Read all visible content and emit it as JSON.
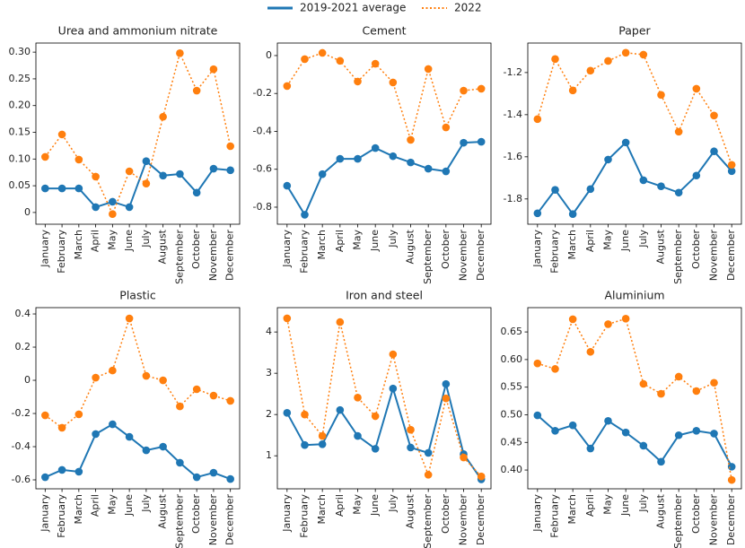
{
  "legend": [
    {
      "name": "2019-2021 average",
      "color": "#1f77b4",
      "dash": "solid"
    },
    {
      "name": "2022",
      "color": "#ff7f0e",
      "dash": "dotted"
    }
  ],
  "chart_data": [
    {
      "type": "line",
      "title": "Urea and ammonium nitrate",
      "categories": [
        "January",
        "February",
        "March",
        "April",
        "May",
        "June",
        "July",
        "August",
        "September",
        "October",
        "November",
        "December"
      ],
      "ylim": [
        -0.022,
        0.317
      ],
      "yticks": [
        0,
        0.05,
        {
          "value": 0.1,
          "label": "0.10"
        },
        0.15,
        {
          "value": 0.2,
          "label": "0.20"
        },
        0.25,
        {
          "value": 0.3,
          "label": "0.30"
        }
      ],
      "series": [
        {
          "values": [
            0.045,
            0.045,
            0.045,
            0.01,
            0.02,
            0.01,
            0.096,
            0.069,
            0.072,
            0.037,
            0.082,
            0.079
          ]
        },
        {
          "values": [
            0.104,
            0.146,
            0.099,
            0.067,
            -0.003,
            0.077,
            0.054,
            0.179,
            0.298,
            0.228,
            0.268,
            0.124
          ]
        }
      ]
    },
    {
      "type": "line",
      "title": "Cement",
      "categories": [
        "January",
        "February",
        "March",
        "April",
        "May",
        "June",
        "July",
        "August",
        "September",
        "October",
        "November",
        "December"
      ],
      "ylim": [
        -0.89,
        0.066
      ],
      "yticks": [
        0,
        -0.2,
        -0.4,
        -0.6,
        -0.8
      ],
      "series": [
        {
          "values": [
            -0.687,
            -0.84,
            -0.626,
            -0.545,
            -0.545,
            -0.488,
            -0.531,
            -0.564,
            -0.597,
            -0.611,
            -0.46,
            -0.455
          ]
        },
        {
          "values": [
            -0.161,
            -0.019,
            0.014,
            -0.028,
            -0.137,
            -0.043,
            -0.142,
            -0.445,
            -0.071,
            -0.379,
            -0.185,
            -0.175
          ]
        }
      ]
    },
    {
      "type": "line",
      "title": "Paper",
      "categories": [
        "January",
        "February",
        "March",
        "April",
        "May",
        "June",
        "July",
        "August",
        "September",
        "October",
        "November",
        "December"
      ],
      "ylim": [
        -1.92,
        -1.06
      ],
      "yticks": [
        -1.2,
        -1.4,
        -1.6,
        -1.8
      ],
      "series": [
        {
          "values": [
            -1.868,
            -1.757,
            -1.872,
            -1.753,
            -1.613,
            -1.532,
            -1.711,
            -1.74,
            -1.77,
            -1.689,
            -1.574,
            -1.668
          ]
        },
        {
          "values": [
            -1.421,
            -1.136,
            -1.285,
            -1.191,
            -1.145,
            -1.106,
            -1.115,
            -1.306,
            -1.481,
            -1.277,
            -1.404,
            -1.638
          ]
        }
      ]
    },
    {
      "type": "line",
      "title": "Plastic",
      "categories": [
        "January",
        "February",
        "March",
        "April",
        "May",
        "June",
        "July",
        "August",
        "September",
        "October",
        "November",
        "December"
      ],
      "ylim": [
        -0.654,
        0.438
      ],
      "yticks": [
        0.4,
        0.2,
        0,
        -0.2,
        -0.4,
        -0.6
      ],
      "series": [
        {
          "values": [
            -0.584,
            -0.54,
            -0.551,
            -0.324,
            -0.265,
            -0.341,
            -0.422,
            -0.4,
            -0.497,
            -0.584,
            -0.557,
            -0.595
          ]
        },
        {
          "values": [
            -0.211,
            -0.286,
            -0.205,
            0.016,
            0.059,
            0.373,
            0.027,
            0,
            -0.157,
            -0.054,
            -0.092,
            -0.124
          ]
        }
      ]
    },
    {
      "type": "line",
      "title": "Iron and steel",
      "categories": [
        "January",
        "February",
        "March",
        "April",
        "May",
        "June",
        "July",
        "August",
        "September",
        "October",
        "November",
        "December"
      ],
      "ylim": [
        0.2,
        4.59
      ],
      "yticks": [
        1,
        2,
        3,
        4
      ],
      "series": [
        {
          "values": [
            2.04,
            1.26,
            1.28,
            2.11,
            1.48,
            1.17,
            2.63,
            1.2,
            1.07,
            2.74,
            1.04,
            0.43
          ]
        },
        {
          "values": [
            4.33,
            2.0,
            1.48,
            4.24,
            2.41,
            1.96,
            3.46,
            1.63,
            0.54,
            2.39,
            0.96,
            0.5
          ]
        }
      ]
    },
    {
      "type": "line",
      "title": "Aluminium",
      "categories": [
        "January",
        "February",
        "March",
        "April",
        "May",
        "June",
        "July",
        "August",
        "September",
        "October",
        "November",
        "December"
      ],
      "ylim": [
        0.366,
        0.694
      ],
      "yticks": [
        {
          "value": 0.4,
          "label": "0.40"
        },
        0.45,
        {
          "value": 0.5,
          "label": "0.50"
        },
        0.55,
        {
          "value": 0.6,
          "label": "0.60"
        },
        0.65
      ],
      "series": [
        {
          "values": [
            0.499,
            0.471,
            0.481,
            0.439,
            0.489,
            0.468,
            0.444,
            0.415,
            0.463,
            0.471,
            0.466,
            0.406
          ]
        },
        {
          "values": [
            0.593,
            0.583,
            0.673,
            0.614,
            0.664,
            0.674,
            0.556,
            0.538,
            0.569,
            0.543,
            0.558,
            0.382
          ]
        }
      ]
    }
  ]
}
